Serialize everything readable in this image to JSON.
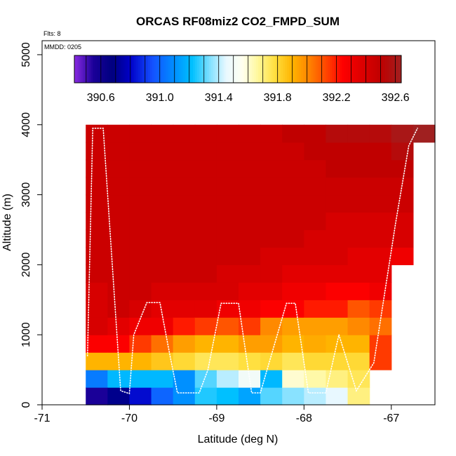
{
  "chart_data": {
    "type": "heatmap",
    "title": "ORCAS RF08miz2 CO2_FMPD_SUM",
    "annotation_flts": "Flts: 8",
    "annotation_mmdd": "MMDD: 0205",
    "xlabel": "Latitude (deg N)",
    "ylabel": "Altitude (m)",
    "xlim": [
      -71,
      -66.5
    ],
    "ylim": [
      0,
      5200
    ],
    "x_ticks": [
      -71,
      -70,
      -69,
      -68,
      -67
    ],
    "x_tick_labels": [
      "-71",
      "-70",
      "-69",
      "-68",
      "-67"
    ],
    "y_ticks": [
      0,
      1000,
      2000,
      3000,
      4000,
      5000
    ],
    "y_tick_labels": [
      "0",
      "1000",
      "2000",
      "3000",
      "4000",
      "5000"
    ],
    "colorbar": {
      "range": [
        390.42,
        392.64
      ],
      "ticks": [
        390.6,
        391.0,
        391.4,
        391.8,
        392.2,
        392.6
      ],
      "tick_labels": [
        "390.6",
        "391.0",
        "391.4",
        "391.8",
        "392.2",
        "392.6"
      ],
      "stops": [
        [
          390.42,
          "#8a2be2"
        ],
        [
          390.55,
          "#1a0098"
        ],
        [
          390.68,
          "#000080"
        ],
        [
          390.8,
          "#0000c8"
        ],
        [
          390.95,
          "#1450ff"
        ],
        [
          391.1,
          "#0090ff"
        ],
        [
          391.22,
          "#00c0ff"
        ],
        [
          391.34,
          "#80e0ff"
        ],
        [
          391.45,
          "#e8f8ff"
        ],
        [
          391.56,
          "#fffff0"
        ],
        [
          391.66,
          "#fff8a0"
        ],
        [
          391.78,
          "#ffe040"
        ],
        [
          391.9,
          "#ffb400"
        ],
        [
          392.02,
          "#ff8000"
        ],
        [
          392.14,
          "#ff4000"
        ],
        [
          392.24,
          "#ff0000"
        ],
        [
          392.36,
          "#e00000"
        ],
        [
          392.5,
          "#c00000"
        ],
        [
          392.64,
          "#a02020"
        ]
      ]
    },
    "cell_lat_width": 0.25,
    "cell_alt_height": 250,
    "alt_bins": [
      125,
      375,
      625,
      875,
      1125,
      1375,
      1625,
      1875,
      2125,
      2375,
      2625,
      2875,
      3125,
      3375,
      3625,
      3875
    ],
    "columns": [
      {
        "lat": -70.375,
        "values": [
          390.55,
          391.05,
          391.9,
          392.25,
          392.4,
          392.4,
          392.4,
          392.45,
          392.45,
          392.45,
          392.45,
          392.45,
          392.45,
          392.45,
          392.45,
          392.45
        ]
      },
      {
        "lat": -70.125,
        "values": [
          390.7,
          391.2,
          391.9,
          392.25,
          392.35,
          392.45,
          392.45,
          392.45,
          392.45,
          392.45,
          392.45,
          392.45,
          392.45,
          392.45,
          392.45,
          392.45
        ]
      },
      {
        "lat": -69.875,
        "values": [
          390.82,
          391.2,
          391.9,
          392.15,
          392.3,
          392.4,
          392.45,
          392.45,
          392.45,
          392.45,
          392.45,
          392.45,
          392.45,
          392.45,
          392.45,
          392.45
        ]
      },
      {
        "lat": -69.625,
        "values": [
          391.0,
          391.2,
          391.85,
          392.05,
          392.3,
          392.35,
          392.4,
          392.45,
          392.45,
          392.45,
          392.45,
          392.45,
          392.45,
          392.45,
          392.45,
          392.45
        ]
      },
      {
        "lat": -69.375,
        "values": [
          391.1,
          391.1,
          391.8,
          391.95,
          392.2,
          392.35,
          392.4,
          392.45,
          392.45,
          392.45,
          392.45,
          392.45,
          392.45,
          392.45,
          392.45,
          392.45
        ]
      },
      {
        "lat": -69.125,
        "values": [
          391.25,
          391.3,
          391.75,
          391.9,
          392.15,
          392.35,
          392.4,
          392.45,
          392.45,
          392.45,
          392.45,
          392.45,
          392.45,
          392.45,
          392.45,
          392.45
        ]
      },
      {
        "lat": -68.875,
        "values": [
          391.22,
          391.4,
          391.75,
          391.9,
          392.1,
          392.3,
          392.4,
          392.4,
          392.45,
          392.45,
          392.45,
          392.45,
          392.45,
          392.45,
          392.45,
          392.45
        ]
      },
      {
        "lat": -68.625,
        "values": [
          391.15,
          391.5,
          391.78,
          391.95,
          392.15,
          392.3,
          392.35,
          392.4,
          392.45,
          392.45,
          392.45,
          392.45,
          392.45,
          392.45,
          392.45,
          392.45
        ]
      },
      {
        "lat": -68.375,
        "values": [
          391.3,
          391.2,
          391.8,
          391.95,
          392.0,
          392.25,
          392.35,
          392.4,
          392.4,
          392.45,
          392.45,
          392.45,
          392.45,
          392.45,
          392.45,
          392.45
        ]
      },
      {
        "lat": -68.125,
        "values": [
          391.35,
          391.6,
          391.75,
          391.9,
          391.95,
          392.25,
          392.3,
          392.35,
          392.4,
          392.45,
          392.45,
          392.45,
          392.45,
          392.45,
          392.45,
          392.5
        ]
      },
      {
        "lat": -67.875,
        "values": [
          391.4,
          391.65,
          391.8,
          391.92,
          391.95,
          392.2,
          392.3,
          392.35,
          392.4,
          392.4,
          392.45,
          392.45,
          392.45,
          392.45,
          392.5,
          392.5
        ]
      },
      {
        "lat": -67.625,
        "values": [
          391.45,
          391.7,
          391.8,
          391.9,
          391.95,
          392.2,
          392.25,
          392.35,
          392.4,
          392.4,
          392.4,
          392.45,
          392.45,
          392.5,
          392.5,
          392.55
        ]
      },
      {
        "lat": -67.375,
        "values": [
          391.7,
          391.75,
          391.8,
          391.9,
          392.0,
          392.1,
          392.25,
          392.35,
          392.35,
          392.4,
          392.4,
          392.45,
          392.45,
          392.5,
          392.5,
          392.55
        ]
      },
      {
        "lat": -67.125,
        "values": [
          null,
          null,
          392.15,
          392.15,
          392.05,
          392.15,
          392.3,
          392.35,
          392.35,
          392.4,
          392.4,
          392.45,
          392.45,
          392.5,
          392.5,
          392.55
        ]
      },
      {
        "lat": -66.875,
        "values": [
          null,
          null,
          null,
          null,
          null,
          null,
          null,
          null,
          392.3,
          392.4,
          392.4,
          392.45,
          392.45,
          392.5,
          392.55,
          392.6
        ]
      },
      {
        "lat": -66.625,
        "values": [
          null,
          null,
          null,
          null,
          null,
          null,
          null,
          null,
          null,
          null,
          null,
          null,
          null,
          null,
          null,
          392.64
        ]
      }
    ],
    "flight_track": {
      "lat": [
        -70.48,
        -70.42,
        -70.3,
        -70.1,
        -70.0,
        -69.95,
        -69.8,
        -69.65,
        -69.55,
        -69.45,
        -69.2,
        -69.1,
        -68.95,
        -68.75,
        -68.6,
        -68.5,
        -68.2,
        -68.1,
        -67.95,
        -67.75,
        -67.6,
        -67.4,
        -67.2,
        -67.1,
        -66.95,
        -66.8,
        -66.7
      ],
      "alt": [
        700,
        3950,
        3950,
        200,
        160,
        1000,
        1460,
        1460,
        800,
        170,
        170,
        500,
        1450,
        1450,
        170,
        170,
        1450,
        1450,
        170,
        170,
        1000,
        200,
        600,
        1400,
        2600,
        3700,
        3950
      ]
    }
  }
}
